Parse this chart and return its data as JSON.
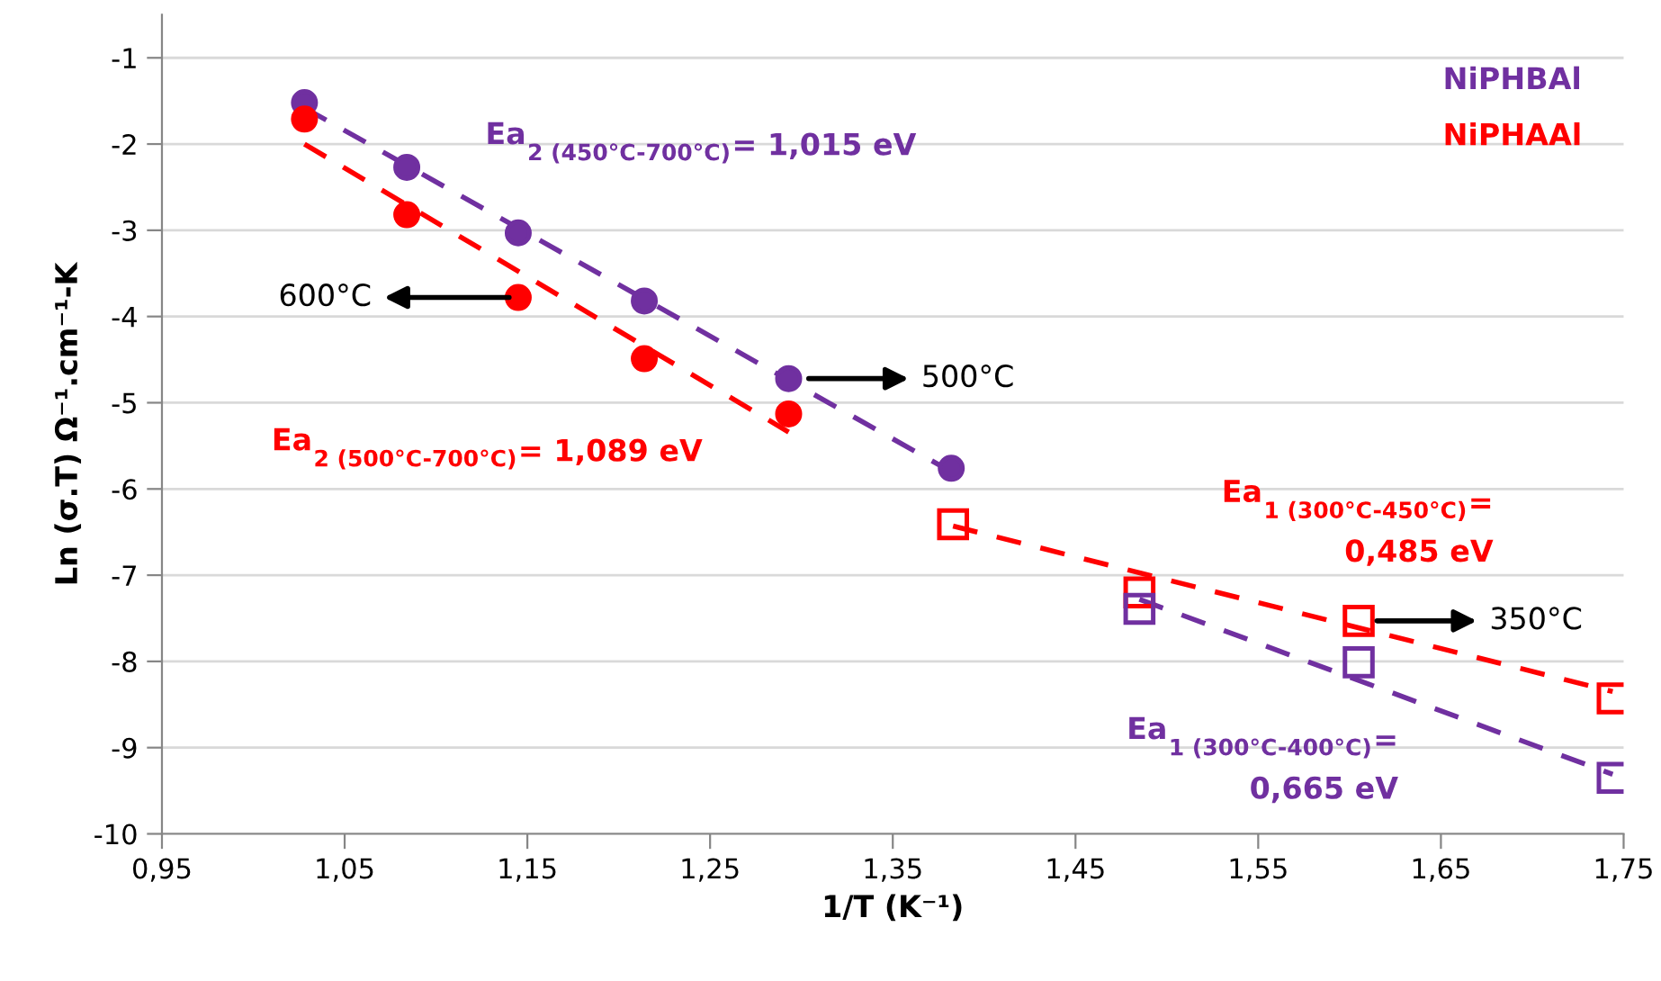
{
  "chart_data": {
    "type": "scatter",
    "xlabel": "1/T (K⁻¹)",
    "ylabel": "Ln (σ.T) Ω⁻¹.cm⁻¹-K",
    "xlim": [
      0.95,
      1.75
    ],
    "ylim": [
      -10,
      -0.5
    ],
    "xticks": [
      {
        "value": 0.95,
        "label": "0,95"
      },
      {
        "value": 1.05,
        "label": "1,05"
      },
      {
        "value": 1.15,
        "label": "1,15"
      },
      {
        "value": 1.25,
        "label": "1,25"
      },
      {
        "value": 1.35,
        "label": "1,35"
      },
      {
        "value": 1.45,
        "label": "1,45"
      },
      {
        "value": 1.55,
        "label": "1,55"
      },
      {
        "value": 1.65,
        "label": "1,65"
      },
      {
        "value": 1.75,
        "label": "1,75"
      }
    ],
    "yticks": [
      -10,
      -9,
      -8,
      -7,
      -6,
      -5,
      -4,
      -3,
      -2,
      -1
    ],
    "grid": "y",
    "legend": "top right",
    "series": [
      {
        "name": "NiPHBAl",
        "color": "#7030a0",
        "marker": "circle",
        "x": [
          1.028,
          1.084,
          1.145,
          1.214,
          1.293,
          1.382
        ],
        "values": [
          -1.52,
          -2.27,
          -3.03,
          -3.82,
          -4.72,
          -5.76
        ]
      },
      {
        "name": "NiPHAAl",
        "color": "#ff0000",
        "marker": "circle",
        "x": [
          1.028,
          1.084,
          1.145,
          1.214,
          1.293
        ],
        "values": [
          -1.71,
          -2.82,
          -3.78,
          -4.49,
          -5.13
        ]
      },
      {
        "color": "#ff0000",
        "marker": "square",
        "x": [
          1.383,
          1.485,
          1.605,
          1.744
        ],
        "values": [
          -6.41,
          -7.2,
          -7.53,
          -8.43
        ]
      },
      {
        "color": "#7030a0",
        "marker": "square",
        "x": [
          1.485,
          1.605,
          1.744
        ],
        "values": [
          -7.39,
          -8.01,
          -9.35
        ]
      },
      {
        "type": "line",
        "color": "#7030a0",
        "line_style": "dashed",
        "marker": "none",
        "x": [
          1.028,
          1.382
        ],
        "values": [
          -1.58,
          -5.8
        ]
      },
      {
        "type": "line",
        "color": "#ff0000",
        "line_style": "dashed",
        "marker": "none",
        "x": [
          1.028,
          1.293
        ],
        "values": [
          -2.0,
          -5.34
        ]
      },
      {
        "type": "line",
        "color": "#ff0000",
        "line_style": "dashed",
        "marker": "none",
        "x": [
          1.383,
          1.744
        ],
        "values": [
          -6.43,
          -8.35
        ]
      },
      {
        "type": "line",
        "color": "#7030a0",
        "line_style": "dashed",
        "marker": "none",
        "x": [
          1.485,
          1.744
        ],
        "values": [
          -7.28,
          -9.31
        ]
      }
    ],
    "annotations": [
      "600°C",
      "500°C",
      "350°C",
      "Ea$_{2 (450°C-700°C)}$= 1,015 eV",
      "Ea$_{2 (500°C-700°C)}$= 1,089 eV",
      "Ea$_{1 (300°C-450°C)}$=\n0,485 eV",
      "Ea$_{1 (300°C-400°C)}$=\n0,665 eV"
    ]
  }
}
